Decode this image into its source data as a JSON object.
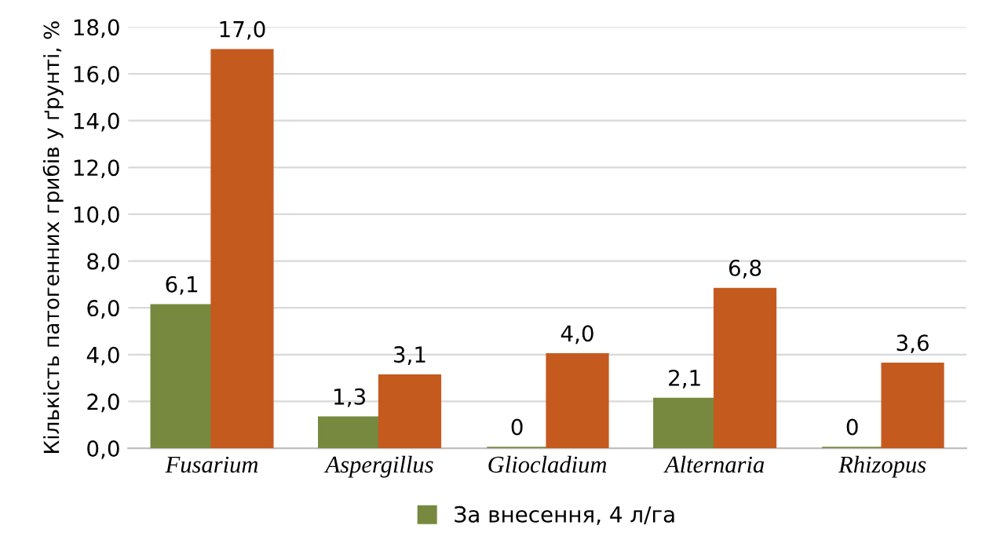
{
  "chart_data": {
    "type": "bar",
    "ylabel": "Кількість патогенних грибів у ґрунті, %",
    "categories": [
      "Fusarium",
      "Aspergillus",
      "Gliocladium",
      "Alternaria",
      "Rhizopus"
    ],
    "series": [
      {
        "name": "За внесення, 4 л/га",
        "color": "#76893f",
        "values": [
          6.1,
          1.3,
          0,
          2.1,
          0
        ],
        "value_labels": [
          "6,1",
          "1,3",
          "0",
          "2,1",
          "0"
        ]
      },
      {
        "color": "#c55a1f",
        "values": [
          17.0,
          3.1,
          4.0,
          6.8,
          3.6
        ],
        "value_labels": [
          "17,0",
          "3,1",
          "4,0",
          "6,8",
          "3,6"
        ]
      }
    ],
    "ylim": [
      0,
      18
    ],
    "yticks": [
      {
        "value": 0,
        "label": "0,0"
      },
      {
        "value": 2,
        "label": "2,0"
      },
      {
        "value": 4,
        "label": "4,0"
      },
      {
        "value": 6,
        "label": "6,0"
      },
      {
        "value": 8,
        "label": "8,0"
      },
      {
        "value": 10,
        "label": "10,0"
      },
      {
        "value": 12,
        "label": "12,0"
      },
      {
        "value": 14,
        "label": "14,0"
      },
      {
        "value": 16,
        "label": "16,0"
      },
      {
        "value": 18,
        "label": "18,0"
      }
    ],
    "grid": "y",
    "legend": "bottom"
  }
}
